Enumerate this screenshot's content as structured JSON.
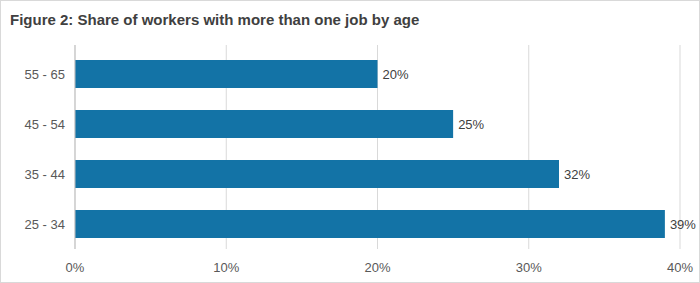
{
  "chart_data": {
    "type": "bar",
    "orientation": "horizontal",
    "title": "Figure 2: Share of workers with more than one job by age",
    "categories": [
      "25 - 34",
      "35 - 44",
      "45 - 54",
      "55 - 65"
    ],
    "values": [
      39,
      32,
      25,
      20
    ],
    "value_labels": [
      "39%",
      "32%",
      "25%",
      "20%"
    ],
    "data_labels": true,
    "color": "#1373a6",
    "xlim": [
      0,
      40
    ],
    "xticks": [
      {
        "value": 0,
        "label": "0%"
      },
      {
        "value": 10,
        "label": "10%"
      },
      {
        "value": 20,
        "label": "20%"
      },
      {
        "value": 30,
        "label": "30%"
      },
      {
        "value": 40,
        "label": "40%"
      }
    ],
    "grid": true
  }
}
